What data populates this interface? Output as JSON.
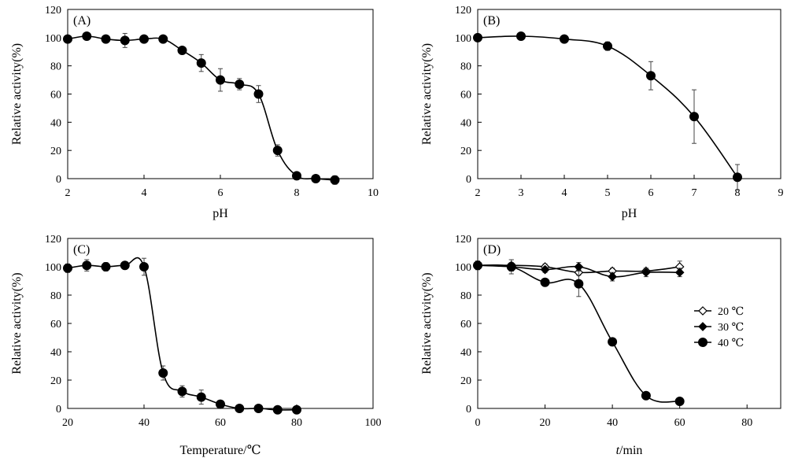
{
  "chart_data": [
    {
      "type": "line",
      "panel_label": "(A)",
      "xlabel": "pH",
      "ylabel": "Relative activity(%)",
      "xlim": [
        2,
        10
      ],
      "ylim": [
        0,
        120
      ],
      "xticks": [
        2,
        4,
        6,
        8,
        10
      ],
      "yticks": [
        0,
        20,
        40,
        60,
        80,
        100,
        120
      ],
      "series": [
        {
          "name": "activity",
          "marker": "circle",
          "x": [
            2,
            2.5,
            3,
            3.5,
            4,
            4.5,
            5,
            5.5,
            6,
            6.5,
            7,
            7.5,
            8,
            8.5,
            9
          ],
          "y": [
            99,
            101,
            99,
            98,
            99,
            99,
            91,
            82,
            70,
            67,
            60,
            20,
            2,
            0,
            -1
          ],
          "err": [
            1,
            1,
            2,
            5,
            1,
            1,
            2,
            6,
            8,
            4,
            6,
            4,
            1,
            1,
            3
          ]
        }
      ]
    },
    {
      "type": "line",
      "panel_label": "(B)",
      "xlabel": "pH",
      "ylabel": "Relative activity(%)",
      "xlim": [
        2,
        9
      ],
      "ylim": [
        0,
        120
      ],
      "xticks": [
        2,
        3,
        4,
        5,
        6,
        7,
        8,
        9
      ],
      "yticks": [
        0,
        20,
        40,
        60,
        80,
        100,
        120
      ],
      "series": [
        {
          "name": "activity",
          "marker": "circle",
          "x": [
            2,
            3,
            4,
            5,
            6,
            7,
            8
          ],
          "y": [
            100,
            101,
            99,
            94,
            73,
            44,
            1
          ],
          "err": [
            1,
            1,
            1,
            3,
            10,
            19,
            9
          ]
        }
      ]
    },
    {
      "type": "line",
      "panel_label": "(C)",
      "xlabel": "Temperature/℃",
      "ylabel": "Relative activity(%)",
      "xlim": [
        20,
        100
      ],
      "ylim": [
        0,
        120
      ],
      "xticks": [
        20,
        40,
        60,
        80,
        100
      ],
      "yticks": [
        0,
        20,
        40,
        60,
        80,
        100,
        120
      ],
      "series": [
        {
          "name": "activity",
          "marker": "circle",
          "x": [
            20,
            25,
            30,
            35,
            40,
            45,
            50,
            55,
            60,
            65,
            70,
            75,
            80
          ],
          "y": [
            99,
            101,
            100,
            101,
            100,
            25,
            12,
            8,
            3,
            0,
            0,
            -1,
            -1
          ],
          "err": [
            3,
            4,
            3,
            2,
            6,
            5,
            4,
            5,
            2,
            1,
            2,
            1,
            2
          ]
        }
      ]
    },
    {
      "type": "line",
      "panel_label": "(D)",
      "xlabel_prefix": "t",
      "xlabel": "/min",
      "ylabel": "Relative activity(%)",
      "xlim": [
        0,
        90
      ],
      "ylim": [
        0,
        120
      ],
      "xticks": [
        0,
        20,
        40,
        60,
        80
      ],
      "yticks": [
        0,
        20,
        40,
        60,
        80,
        100,
        120
      ],
      "legend_position": "right",
      "series": [
        {
          "name": "20 ℃",
          "marker": "diamond-open",
          "x": [
            0,
            10,
            20,
            30,
            40,
            50,
            60
          ],
          "y": [
            101,
            101,
            100,
            96,
            97,
            97,
            100
          ],
          "err": [
            3,
            4,
            2,
            2,
            2,
            2,
            4
          ]
        },
        {
          "name": "30 ℃",
          "marker": "diamond-filled",
          "x": [
            0,
            10,
            20,
            30,
            40,
            50,
            60
          ],
          "y": [
            101,
            100,
            98,
            100,
            93,
            96,
            96
          ],
          "err": [
            3,
            3,
            2,
            3,
            3,
            3,
            3
          ]
        },
        {
          "name": "40 ℃",
          "marker": "circle",
          "x": [
            0,
            10,
            20,
            30,
            40,
            50,
            60
          ],
          "y": [
            101,
            100,
            89,
            88,
            47,
            9,
            5
          ],
          "err": [
            3,
            5,
            2,
            9,
            1,
            1,
            2
          ]
        }
      ]
    }
  ]
}
